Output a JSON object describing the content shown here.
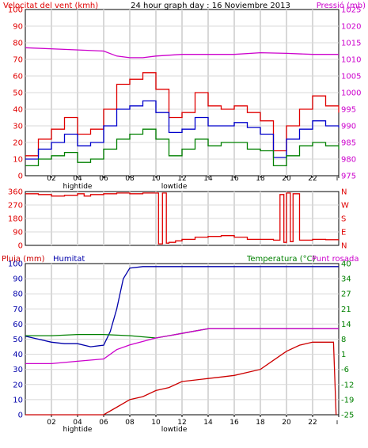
{
  "header": {
    "left_label": "Velocitat del vent (kmh)",
    "title": "24 hour graph day : 16 Noviembre 2013",
    "right_label": "Pressió (mb)"
  },
  "x_ticks": [
    "02",
    "04",
    "06",
    "08",
    "10",
    "12",
    "14",
    "16",
    "18",
    "20",
    "22",
    ""
  ],
  "tide_labels": [
    {
      "hour": 4,
      "text": "hightide"
    },
    {
      "hour": 11.4,
      "text": "lowtide"
    }
  ],
  "colors": {
    "wind_max": "#e00000",
    "wind_avg": "#0000cc",
    "wind_min": "#008000",
    "pressure": "#cc00cc",
    "direction": "#e00000",
    "rain": "#cc0000",
    "humidity": "#0000aa",
    "temperature": "#008000",
    "dewpoint": "#cc00cc",
    "grid": "#d8d8d8",
    "axis_left": "#e00000",
    "axis_right": "#cc00cc"
  },
  "chart_data": [
    {
      "type": "line",
      "name": "wind-pressure",
      "title": "24 hour graph day : 16 Noviembre 2013",
      "left_axis_label": "Velocitat del vent (kmh)",
      "right_axis_label": "Pressió (mb)",
      "left_ticks": [
        "0",
        "10",
        "20",
        "30",
        "40",
        "50",
        "60",
        "70",
        "80",
        "90",
        "100"
      ],
      "right_ticks": [
        "975",
        "980",
        "985",
        "990",
        "995",
        "1000",
        "1005",
        "1010",
        "1015",
        "1020",
        "1025"
      ],
      "ylim_left": [
        0,
        100
      ],
      "ylim_right": [
        975,
        1025
      ],
      "xlim_hours": [
        0,
        24
      ],
      "series": [
        {
          "key": "wind_max",
          "hours": [
            0,
            1,
            2,
            3,
            4,
            5,
            6,
            7,
            8,
            9,
            10,
            11,
            12,
            13,
            14,
            15,
            16,
            17,
            18,
            19,
            20,
            21,
            22,
            23,
            24
          ],
          "values": [
            12,
            22,
            28,
            35,
            25,
            28,
            40,
            55,
            58,
            62,
            52,
            35,
            38,
            50,
            42,
            40,
            42,
            38,
            33,
            15,
            30,
            40,
            48,
            42,
            38
          ]
        },
        {
          "key": "wind_avg",
          "hours": [
            0,
            1,
            2,
            3,
            4,
            5,
            6,
            7,
            8,
            9,
            10,
            11,
            12,
            13,
            14,
            15,
            16,
            17,
            18,
            19,
            20,
            21,
            22,
            23,
            24
          ],
          "values": [
            10,
            16,
            20,
            25,
            18,
            20,
            30,
            40,
            42,
            45,
            38,
            26,
            28,
            35,
            30,
            30,
            32,
            29,
            25,
            11,
            22,
            28,
            33,
            30,
            29
          ]
        },
        {
          "key": "wind_min",
          "hours": [
            0,
            1,
            2,
            3,
            4,
            5,
            6,
            7,
            8,
            9,
            10,
            11,
            12,
            13,
            14,
            15,
            16,
            17,
            18,
            19,
            20,
            21,
            22,
            23,
            24
          ],
          "values": [
            6,
            10,
            12,
            14,
            8,
            10,
            16,
            22,
            25,
            28,
            22,
            12,
            16,
            22,
            18,
            20,
            20,
            16,
            15,
            6,
            12,
            18,
            20,
            18,
            16
          ]
        },
        {
          "key": "pressure",
          "hours": [
            0,
            3,
            6,
            7,
            8,
            9,
            10,
            12,
            14,
            16,
            18,
            20,
            22,
            24
          ],
          "values": [
            1013.5,
            1013,
            1012.5,
            1011,
            1010.5,
            1010.5,
            1011,
            1011.5,
            1011.5,
            1011.5,
            1012,
            1011.8,
            1011.5,
            1011.5
          ]
        }
      ]
    },
    {
      "type": "line",
      "name": "wind-direction",
      "left_ticks": [
        "0",
        "90",
        "180",
        "270",
        "360"
      ],
      "right_ticks": [
        "N",
        "E",
        "S",
        "W",
        "N"
      ],
      "ylim": [
        0,
        360
      ],
      "xlim_hours": [
        0,
        24
      ],
      "series": [
        {
          "key": "direction",
          "hours": [
            0,
            1,
            2,
            3,
            4,
            4.5,
            5,
            6,
            7,
            8,
            9,
            10,
            10.2,
            10.5,
            10.8,
            11,
            11.5,
            12,
            13,
            14,
            15,
            16,
            17,
            18,
            19,
            19.5,
            19.8,
            20,
            20.3,
            20.5,
            21,
            22,
            23,
            24
          ],
          "values": [
            345,
            340,
            330,
            335,
            345,
            330,
            340,
            345,
            350,
            345,
            350,
            350,
            10,
            350,
            15,
            20,
            30,
            40,
            55,
            60,
            65,
            55,
            40,
            40,
            35,
            340,
            20,
            350,
            25,
            345,
            35,
            40,
            38,
            40
          ]
        }
      ]
    },
    {
      "type": "line",
      "name": "rain-humidity-temperature",
      "left_axis_label": "Pluja (mm)",
      "mid_axis_label": "Humitat",
      "right_axis_label": "Temperatura (°C)",
      "right_axis_label2": "Punt rosada",
      "left_ticks": [
        "0",
        "10",
        "20",
        "30",
        "40",
        "50",
        "60",
        "70",
        "80",
        "90",
        "100"
      ],
      "right_ticks": [
        "-25",
        "-19",
        "-12",
        "-6",
        "1",
        "8",
        "14",
        "21",
        "27",
        "34",
        "40"
      ],
      "ylim_left": [
        0,
        100
      ],
      "ylim_right": [
        -25,
        40
      ],
      "xlim_hours": [
        0,
        24
      ],
      "series": [
        {
          "key": "rain",
          "hours": [
            0,
            6,
            7,
            8,
            9,
            10,
            11,
            12,
            13,
            14,
            15,
            16,
            17,
            18,
            19,
            20,
            21,
            22,
            23,
            23.6,
            23.8
          ],
          "values": [
            0,
            0,
            5,
            10,
            12,
            16,
            18,
            22,
            23,
            24,
            25,
            26,
            28,
            30,
            36,
            42,
            46,
            48,
            48,
            48,
            0
          ]
        },
        {
          "key": "humidity",
          "hours": [
            0,
            1,
            2,
            3,
            4,
            5,
            6,
            6.5,
            7,
            7.5,
            8,
            9,
            10,
            11,
            12,
            14,
            16,
            18,
            20,
            22,
            24
          ],
          "values": [
            52,
            50,
            48,
            47,
            47,
            45,
            46,
            55,
            70,
            90,
            97,
            98,
            98,
            98,
            98,
            98,
            98,
            98,
            98,
            98,
            98
          ]
        },
        {
          "key": "temperature",
          "hours": [
            0,
            2,
            4,
            6,
            8,
            10,
            11,
            12,
            13,
            14,
            16,
            18,
            20,
            22,
            24
          ],
          "values": [
            9,
            9,
            9.5,
            9.5,
            9,
            8,
            9,
            10,
            11,
            12,
            12,
            12,
            12,
            12,
            12
          ]
        },
        {
          "key": "dewpoint",
          "hours": [
            0,
            2,
            4,
            6,
            7,
            8,
            10,
            11,
            12,
            13,
            14,
            16,
            18,
            20,
            22,
            24
          ],
          "values": [
            -3,
            -3,
            -2,
            -1,
            3,
            5,
            8,
            9,
            10,
            11,
            12,
            12,
            12,
            12,
            12,
            12
          ]
        }
      ]
    }
  ]
}
